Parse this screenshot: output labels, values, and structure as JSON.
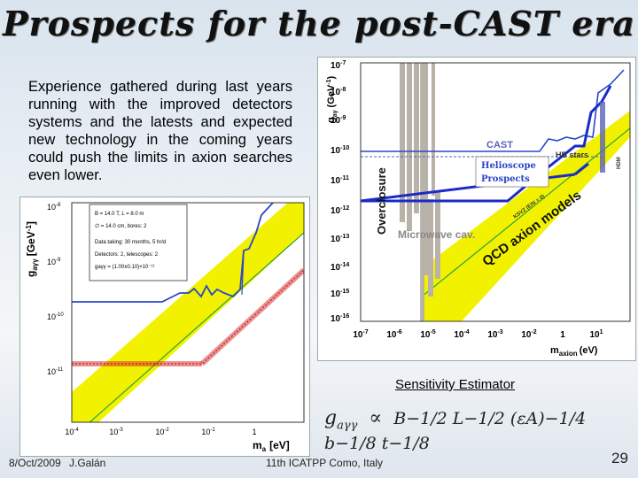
{
  "slide": {
    "title": "Prospects for the post-CAST era",
    "body": "Experience gathered during last years running with the improved detectors systems and the latests and expected new technology in the coming years could push the limits in axion searches even lower.",
    "estimator_label": "Sensitivity Estimator"
  },
  "formula": {
    "lhs": "g",
    "lhs_sub": "aγγ",
    "relation": "∝",
    "rhs": "B−1/2 L−1/2 (εA)−1/4 b−1/8 t−1/8"
  },
  "footer": {
    "date": "8/Oct/2009",
    "author": "J.Galán",
    "conference": "11th ICATPP Como, Italy",
    "page": "29"
  },
  "left_plot": {
    "ylabel": "g",
    "ylabel_sub": "aγγ",
    "ylabel_unit": "[GeV",
    "ylabel_unit_sup": "-1",
    "ylabel_close": "]",
    "xlabel": "m",
    "xlabel_sub": "a",
    "xlabel_unit": "[eV]",
    "yticks": [
      "10",
      "10",
      "10",
      "10"
    ],
    "ytick_exp": [
      "-8",
      "-9",
      "-10",
      "-11"
    ],
    "xticks": [
      "10",
      "10",
      "10",
      "10",
      "1"
    ],
    "xtick_exp": [
      "-4",
      "-3",
      "-2",
      "-1",
      ""
    ],
    "params": [
      "B = 14.0 T,  L = 8.0 m",
      "∅ = 14.0 cm,  bores: 2",
      "Data taking: 30 months, 5 hr/d",
      "Detectors: 2,  telescopes: 2",
      "gaγγ = (1.00±0.10)×10⁻¹¹"
    ]
  },
  "right_plot": {
    "ylabel": "g",
    "ylabel_sub": "aγ",
    "ylabel_unit": "(GeV",
    "ylabel_unit_sup": "-1",
    "ylabel_close": ")",
    "xlabel": "m",
    "xlabel_sub": "axion",
    "xlabel_unit": "(eV)",
    "yticks": [
      "10",
      "10",
      "10",
      "10",
      "10",
      "10",
      "10",
      "10",
      "10",
      "10"
    ],
    "ytick_exp": [
      "-7",
      "-8",
      "-9",
      "-10",
      "-11",
      "-12",
      "-13",
      "-14",
      "-15",
      "-16"
    ],
    "xticks": [
      "10",
      "10",
      "10",
      "10",
      "10",
      "10",
      "1",
      "10"
    ],
    "xtick_exp": [
      "-7",
      "-6",
      "-5",
      "-4",
      "-3",
      "-2",
      "",
      "1"
    ],
    "labels": {
      "cast": "CAST",
      "hb_stars": "HB stars",
      "helioscope": "Helioscope",
      "prospects": "Prospects",
      "overclosure": "Overclosure",
      "microwave": "Microwave cav.",
      "qcd": "QCD axion models",
      "ksvz": "KSVZ (E/N = 0)",
      "hdm": "HDM"
    }
  },
  "colors": {
    "band": "#f2f200",
    "limit": "#2b46c8",
    "prospect": "#1a2bc8",
    "hb": "#5a63b8"
  }
}
